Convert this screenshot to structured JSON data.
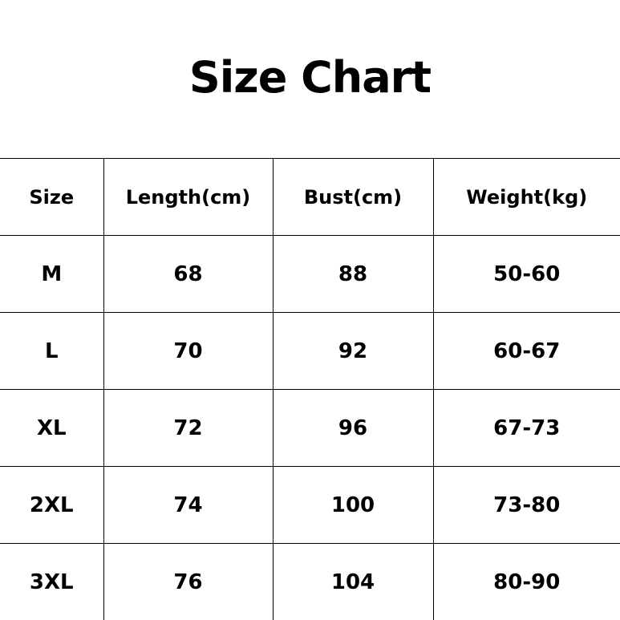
{
  "title": "Size Chart",
  "table": {
    "headers": [
      "Size",
      "Length(cm)",
      "Bust(cm)",
      "Weight(kg)"
    ],
    "rows": [
      [
        "M",
        "68",
        "88",
        "50-60"
      ],
      [
        "L",
        "70",
        "92",
        "60-67"
      ],
      [
        "XL",
        "72",
        "96",
        "67-73"
      ],
      [
        "2XL",
        "74",
        "100",
        "73-80"
      ],
      [
        "3XL",
        "76",
        "104",
        "80-90"
      ]
    ]
  }
}
